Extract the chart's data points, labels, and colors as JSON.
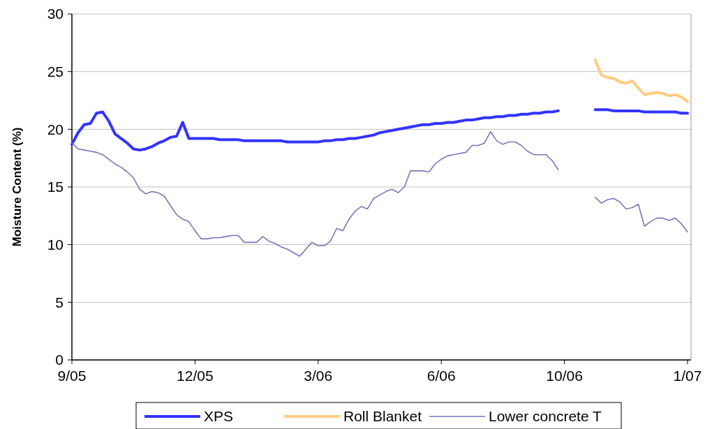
{
  "chart_data": {
    "type": "line",
    "ylabel": "Moisture Content (%)",
    "categories": [
      "9/05",
      null,
      null,
      null,
      null,
      null,
      null,
      null,
      null,
      null,
      null,
      null,
      null,
      null,
      null,
      null,
      null,
      null,
      null,
      null,
      "12/05",
      null,
      null,
      null,
      null,
      null,
      null,
      null,
      null,
      null,
      null,
      null,
      null,
      null,
      null,
      null,
      null,
      null,
      null,
      null,
      "3/06",
      null,
      null,
      null,
      null,
      null,
      null,
      null,
      null,
      null,
      null,
      null,
      null,
      null,
      null,
      null,
      null,
      null,
      null,
      null,
      "6/06",
      null,
      null,
      null,
      null,
      null,
      null,
      null,
      null,
      null,
      null,
      null,
      null,
      null,
      null,
      null,
      null,
      null,
      null,
      null,
      "10/06",
      null,
      null,
      null,
      null,
      null,
      null,
      null,
      null,
      null,
      null,
      null,
      null,
      null,
      null,
      null,
      null,
      null,
      null,
      null,
      "1/07"
    ],
    "ylim": [
      0,
      30
    ],
    "yticks": [
      0,
      5,
      10,
      15,
      20,
      25,
      30
    ],
    "grid": "y",
    "legend": "bottom",
    "line_style": "solid",
    "marker": "none",
    "series": [
      {
        "name": "XPS",
        "color": "#3333ff",
        "values": [
          18.7,
          19.7,
          20.4,
          20.5,
          21.4,
          21.5,
          20.7,
          19.6,
          19.2,
          18.8,
          18.3,
          18.2,
          18.3,
          18.5,
          18.8,
          19.0,
          19.3,
          19.4,
          20.6,
          19.2,
          19.2,
          19.2,
          19.2,
          19.2,
          19.1,
          19.1,
          19.1,
          19.1,
          19.0,
          19.0,
          19.0,
          19.0,
          19.0,
          19.0,
          19.0,
          18.9,
          18.9,
          18.9,
          18.9,
          18.9,
          18.9,
          19.0,
          19.0,
          19.1,
          19.1,
          19.2,
          19.2,
          19.3,
          19.4,
          19.5,
          19.7,
          19.8,
          19.9,
          20.0,
          20.1,
          20.2,
          20.3,
          20.4,
          20.4,
          20.5,
          20.5,
          20.6,
          20.6,
          20.7,
          20.8,
          20.8,
          20.9,
          21.0,
          21.0,
          21.1,
          21.1,
          21.2,
          21.2,
          21.3,
          21.3,
          21.4,
          21.4,
          21.5,
          21.5,
          21.6,
          null,
          null,
          null,
          null,
          null,
          21.7,
          21.7,
          21.7,
          21.6,
          21.6,
          21.6,
          21.6,
          21.6,
          21.5,
          21.5,
          21.5,
          21.5,
          21.5,
          21.5,
          21.4,
          21.4
        ]
      },
      {
        "name": "Roll Blanket",
        "color": "#ffcc80",
        "values": [
          null,
          null,
          null,
          null,
          null,
          null,
          null,
          null,
          null,
          null,
          null,
          null,
          null,
          null,
          null,
          null,
          null,
          null,
          null,
          null,
          null,
          null,
          null,
          null,
          null,
          null,
          null,
          null,
          null,
          null,
          null,
          null,
          null,
          null,
          null,
          null,
          null,
          null,
          null,
          null,
          null,
          null,
          null,
          null,
          null,
          null,
          null,
          null,
          null,
          null,
          null,
          null,
          null,
          null,
          null,
          null,
          null,
          null,
          null,
          null,
          null,
          null,
          null,
          null,
          null,
          null,
          null,
          null,
          null,
          null,
          null,
          null,
          null,
          null,
          null,
          null,
          null,
          null,
          null,
          null,
          null,
          null,
          null,
          null,
          null,
          26.0,
          24.7,
          24.5,
          24.4,
          24.1,
          24.0,
          24.2,
          23.6,
          23.0,
          23.1,
          23.2,
          23.1,
          22.9,
          23.0,
          22.8,
          22.4
        ]
      },
      {
        "name": "Lower concrete T",
        "color": "#7777bb",
        "values": [
          18.8,
          18.3,
          18.2,
          18.1,
          18.0,
          17.8,
          17.4,
          17.0,
          16.7,
          16.3,
          15.8,
          14.8,
          14.4,
          14.6,
          14.5,
          14.2,
          13.4,
          12.6,
          12.2,
          12.0,
          11.2,
          10.5,
          10.5,
          10.6,
          10.6,
          10.7,
          10.8,
          10.8,
          10.2,
          10.2,
          10.2,
          10.7,
          10.3,
          10.1,
          9.8,
          9.6,
          9.3,
          9.0,
          9.6,
          10.2,
          9.9,
          9.9,
          10.3,
          11.4,
          11.2,
          12.2,
          12.9,
          13.3,
          13.1,
          14.0,
          14.3,
          14.6,
          14.8,
          14.5,
          15.0,
          16.4,
          16.4,
          16.4,
          16.3,
          17.0,
          17.4,
          17.7,
          17.8,
          17.9,
          18.0,
          18.6,
          18.6,
          18.8,
          19.8,
          19.0,
          18.7,
          18.9,
          18.9,
          18.6,
          18.1,
          17.8,
          17.8,
          17.8,
          17.3,
          16.5,
          null,
          null,
          null,
          null,
          null,
          14.1,
          13.6,
          13.9,
          14.0,
          13.7,
          13.1,
          13.2,
          13.5,
          11.6,
          12.0,
          12.3,
          12.3,
          12.1,
          12.3,
          11.8,
          11.1
        ]
      }
    ]
  }
}
